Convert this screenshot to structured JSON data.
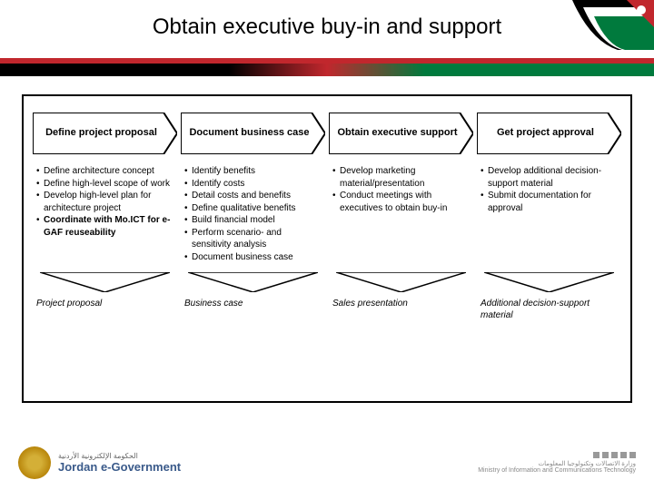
{
  "page": {
    "title": "Obtain executive buy-in and support",
    "colors": {
      "red_bar": "#c1272d",
      "black": "#000000",
      "green": "#007a3d",
      "border": "#000000",
      "bg": "#ffffff"
    }
  },
  "process": {
    "steps": [
      {
        "label": "Define project proposal"
      },
      {
        "label": "Document business case"
      },
      {
        "label": "Obtain executive support"
      },
      {
        "label": "Get project approval"
      }
    ]
  },
  "columns": [
    {
      "bullets": [
        {
          "text": "Define architecture concept",
          "bold": false
        },
        {
          "text": "Define high-level scope of work",
          "bold": false
        },
        {
          "text": "Develop high-level plan for architecture project",
          "bold": false
        },
        {
          "text": "Coordinate with Mo.ICT for e-GAF reuseability",
          "bold": true
        }
      ],
      "output": "Project proposal"
    },
    {
      "bullets": [
        {
          "text": "Identify benefits",
          "bold": false
        },
        {
          "text": "Identify costs",
          "bold": false
        },
        {
          "text": "Detail costs and benefits",
          "bold": false
        },
        {
          "text": "Define qualitative benefits",
          "bold": false
        },
        {
          "text": "Build financial model",
          "bold": false
        },
        {
          "text": "Perform scenario- and sensitivity analysis",
          "bold": false
        },
        {
          "text": "Document business case",
          "bold": false
        }
      ],
      "output": "Business case"
    },
    {
      "bullets": [
        {
          "text": "Develop marketing material/presentation",
          "bold": false
        },
        {
          "text": "Conduct meetings with executives to obtain buy-in",
          "bold": false
        }
      ],
      "output": "Sales presentation"
    },
    {
      "bullets": [
        {
          "text": "Develop additional decision-support material",
          "bold": false
        },
        {
          "text": "Submit documentation for approval",
          "bold": false
        }
      ],
      "output": "Additional decision-support material"
    }
  ],
  "footer": {
    "left_arabic": "الحكومة الإلكترونية الأردنية",
    "left_brand": "Jordan e-Government",
    "right_arabic": "وزارة الاتصالات وتكنولوجيا المعلومات",
    "right_en": "Ministry of Information and Communications Technology"
  }
}
